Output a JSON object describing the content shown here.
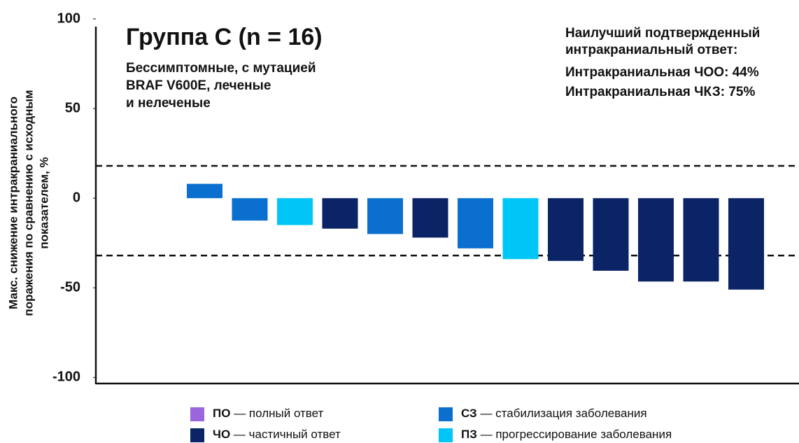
{
  "chart_data": {
    "type": "bar",
    "title": "Группа С (n = 16)",
    "subtitle": [
      "Бессимптомные, с мутацией",
      "BRAF V600E, леченые",
      "и нелеченые"
    ],
    "annotations": [
      "Наилучший подтвержденный",
      "интракраниальный ответ:",
      "Интракраниальная ЧОО: 44%",
      "Интракраниальная ЧКЗ: 75%"
    ],
    "ylabel": [
      "Макс. снижение интракраниального",
      "поражения по сравнению с исходным",
      "показателем, %"
    ],
    "values": [
      8,
      -12.5,
      -15,
      -17,
      -20,
      -22,
      -28,
      -34,
      -35,
      -40.5,
      -46.5,
      -46.5,
      -51
    ],
    "colors": [
      "#0b6fd0",
      "#0b6fd0",
      "#00c6f7",
      "#0a2466",
      "#0b6fd0",
      "#0a2466",
      "#0b6fd0",
      "#00c6f7",
      "#0a2466",
      "#0a2466",
      "#0a2466",
      "#0a2466",
      "#0a2466"
    ],
    "reference_lines": [
      18,
      -32
    ],
    "ylim": [
      -103,
      100
    ],
    "yticks": [
      100,
      50,
      0,
      -50,
      -100
    ],
    "legend": [
      {
        "code": "ПО",
        "text": "— полный ответ",
        "color": "#9966dd"
      },
      {
        "code": "СЗ",
        "text": "— стабилизация заболевания",
        "color": "#0b6fd0"
      },
      {
        "code": "ЧО",
        "text": "— частичный ответ",
        "color": "#0a2466"
      },
      {
        "code": "ПЗ",
        "text": "— прогрессирование заболевания",
        "color": "#00c6f7"
      }
    ]
  }
}
